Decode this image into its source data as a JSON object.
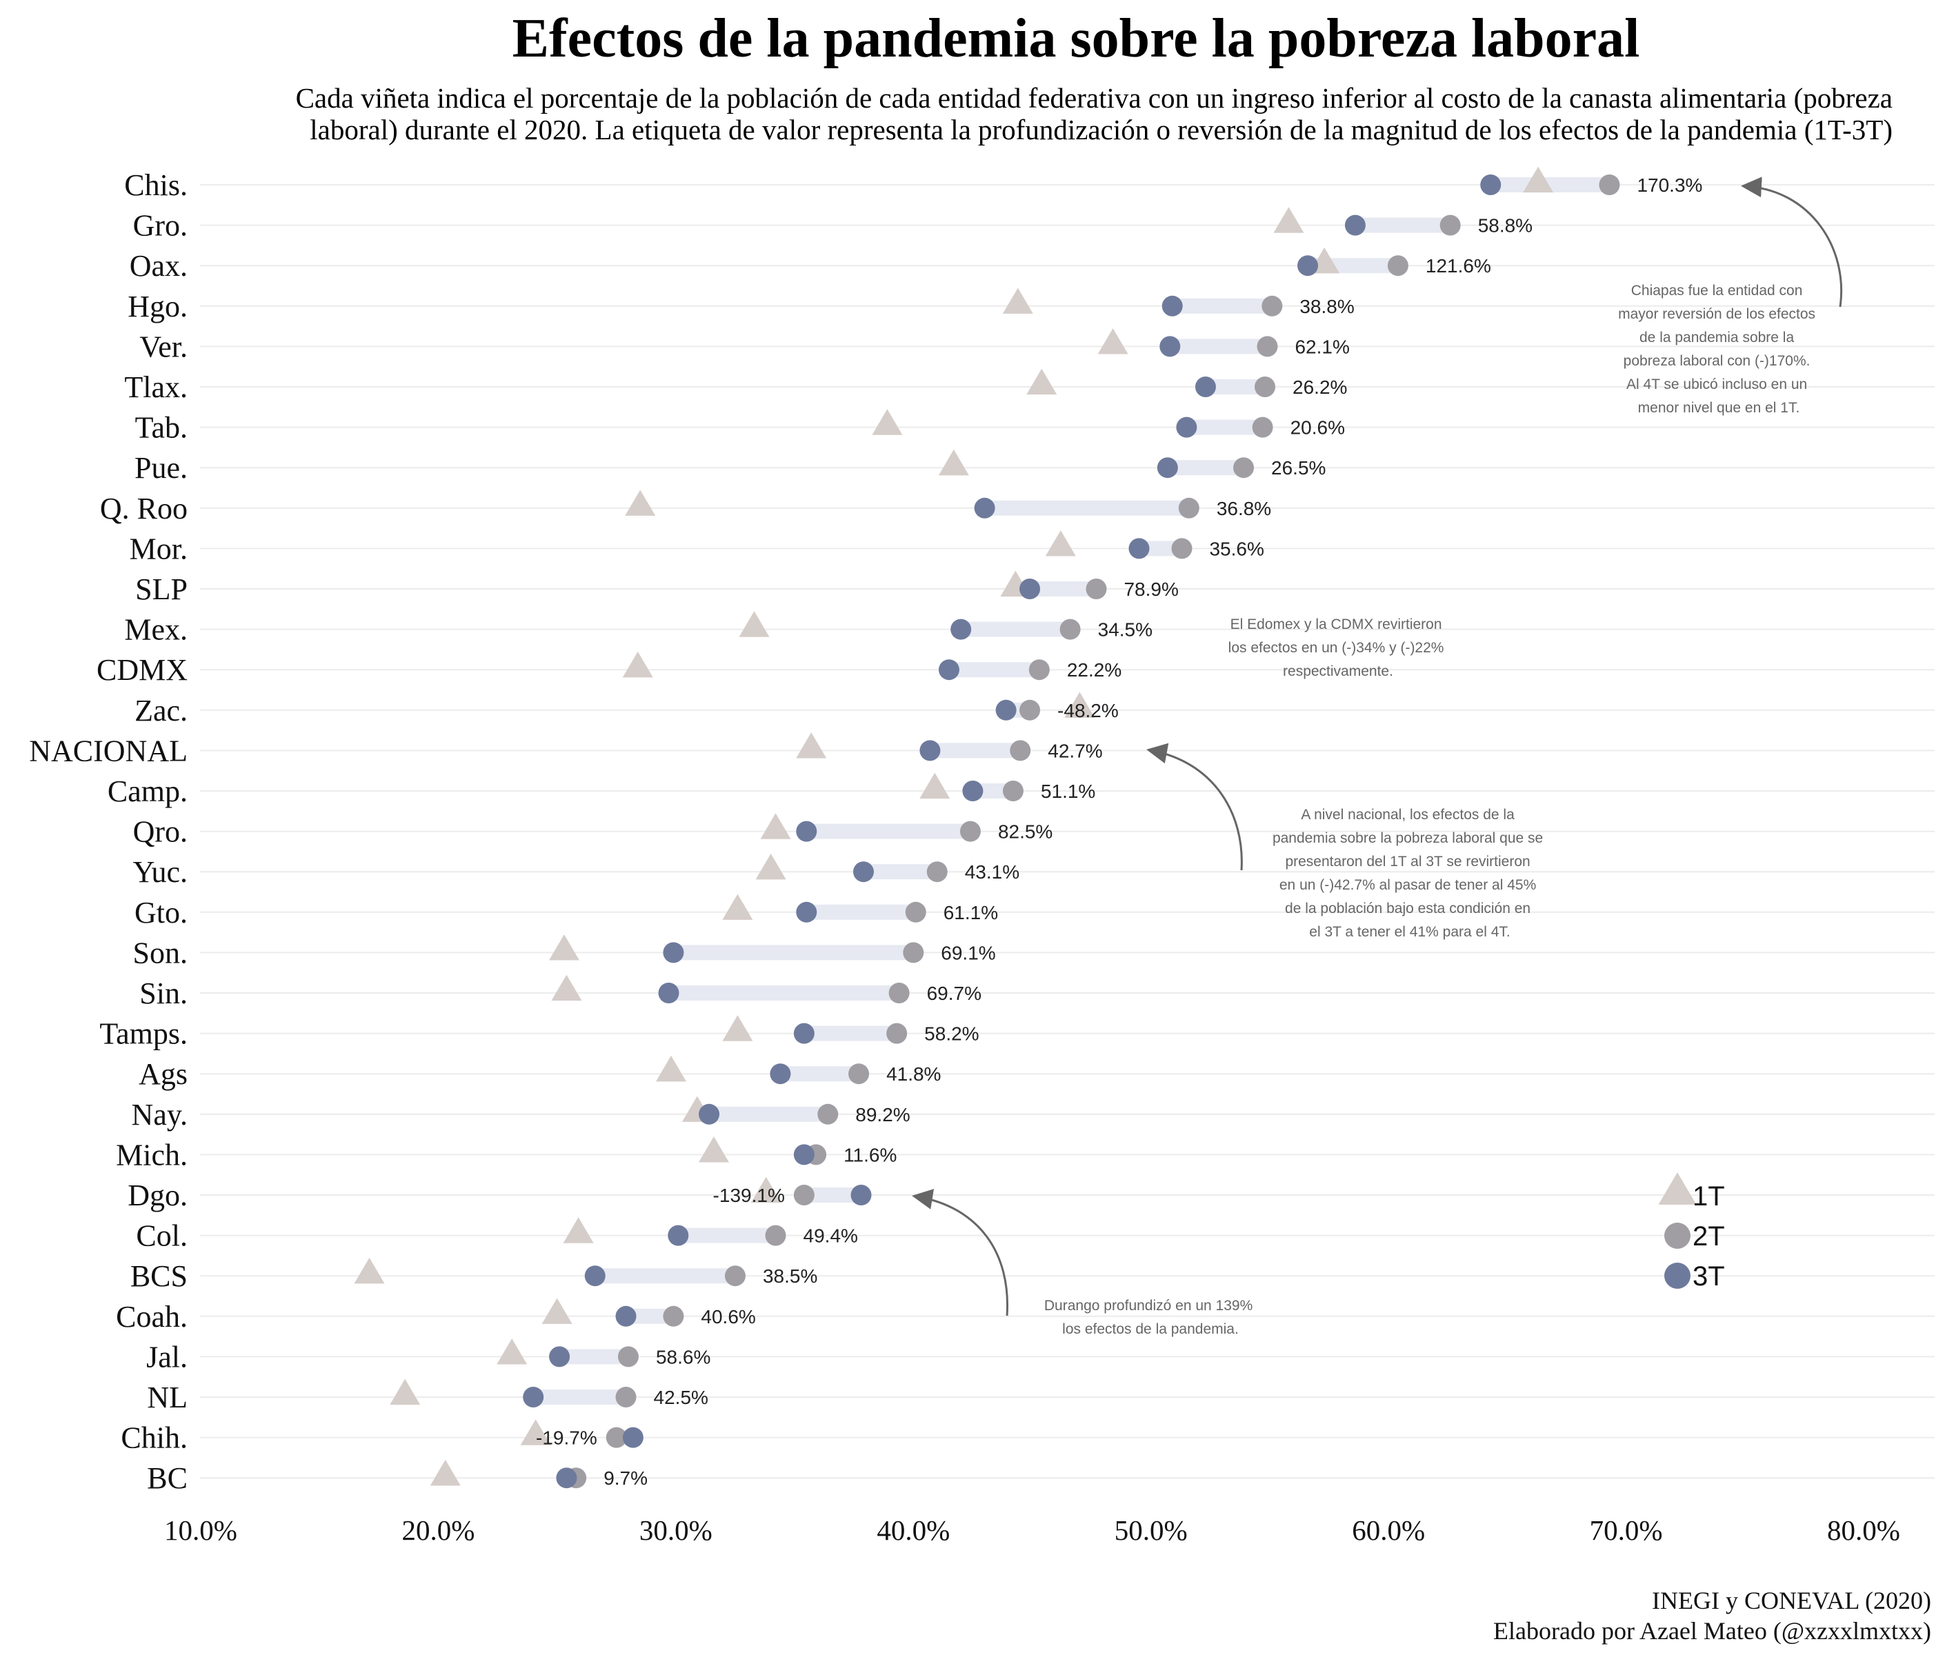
{
  "chart_data": {
    "type": "dumbbell",
    "title": "Efectos de la pandemia sobre la pobreza laboral",
    "subtitle_lines": [
      "Cada viñeta indica el porcentaje de la población de cada entidad federativa con un ingreso inferior al costo de la canasta alimentaria (pobreza",
      "laboral) durante el 2020. La etiqueta de valor representa la profundización o reversión de la magnitud de los efectos de la pandemia (1T-3T)"
    ],
    "x_ticks": [
      "10.0%",
      "20.0%",
      "30.0%",
      "40.0%",
      "50.0%",
      "60.0%",
      "70.0%",
      "80.0%"
    ],
    "xlim": [
      10,
      80
    ],
    "legend": [
      {
        "name": "1T",
        "shape": "triangle",
        "color": "#d5cdc9"
      },
      {
        "name": "2T",
        "shape": "circle",
        "color": "#a09ea3"
      },
      {
        "name": "3T",
        "shape": "circle",
        "color": "#6e7a9c"
      }
    ],
    "colors": {
      "t1": "#d5cdc9",
      "t2": "#a09ea3",
      "t3": "#6e7a9c",
      "segment": "#e6e9f1",
      "grid": "#ececec",
      "arrow": "#666666"
    },
    "rows": [
      {
        "state": "Chis.",
        "t1": 66.3,
        "t2": 69.3,
        "t3": 64.3,
        "label": "170.3%"
      },
      {
        "state": "Gro.",
        "t1": 55.8,
        "t2": 62.6,
        "t3": 58.6,
        "label": "58.8%"
      },
      {
        "state": "Oax.",
        "t1": 57.3,
        "t2": 60.4,
        "t3": 56.6,
        "label": "121.6%"
      },
      {
        "state": "Hgo.",
        "t1": 44.4,
        "t2": 55.1,
        "t3": 50.9,
        "label": "38.8%"
      },
      {
        "state": "Ver.",
        "t1": 48.4,
        "t2": 54.9,
        "t3": 50.8,
        "label": "62.1%"
      },
      {
        "state": "Tlax.",
        "t1": 45.4,
        "t2": 54.8,
        "t3": 52.3,
        "label": "26.2%"
      },
      {
        "state": "Tab.",
        "t1": 38.9,
        "t2": 54.7,
        "t3": 51.5,
        "label": "20.6%"
      },
      {
        "state": "Pue.",
        "t1": 41.7,
        "t2": 53.9,
        "t3": 50.7,
        "label": "26.5%"
      },
      {
        "state": "Q. Roo",
        "t1": 28.5,
        "t2": 51.6,
        "t3": 43.0,
        "label": "36.8%"
      },
      {
        "state": "Mor.",
        "t1": 46.2,
        "t2": 51.3,
        "t3": 49.5,
        "label": "35.6%"
      },
      {
        "state": "SLP",
        "t1": 44.3,
        "t2": 47.7,
        "t3": 44.9,
        "label": "78.9%"
      },
      {
        "state": "Mex.",
        "t1": 33.3,
        "t2": 46.6,
        "t3": 42.0,
        "label": "34.5%"
      },
      {
        "state": "CDMX",
        "t1": 28.4,
        "t2": 45.3,
        "t3": 41.5,
        "label": "22.2%"
      },
      {
        "state": "Zac.",
        "t1": 47.0,
        "t2": 44.9,
        "t3": 43.9,
        "label": "-48.2%"
      },
      {
        "state": "NACIONAL",
        "t1": 35.7,
        "t2": 44.5,
        "t3": 40.7,
        "label": "42.7%"
      },
      {
        "state": "Camp.",
        "t1": 40.9,
        "t2": 44.2,
        "t3": 42.5,
        "label": "51.1%"
      },
      {
        "state": "Qro.",
        "t1": 34.2,
        "t2": 42.4,
        "t3": 35.5,
        "label": "82.5%"
      },
      {
        "state": "Yuc.",
        "t1": 34.0,
        "t2": 41.0,
        "t3": 37.9,
        "label": "43.1%"
      },
      {
        "state": "Gto.",
        "t1": 32.6,
        "t2": 40.1,
        "t3": 35.5,
        "label": "61.1%"
      },
      {
        "state": "Son.",
        "t1": 25.3,
        "t2": 40.0,
        "t3": 29.9,
        "label": "69.1%"
      },
      {
        "state": "Sin.",
        "t1": 25.4,
        "t2": 39.4,
        "t3": 29.7,
        "label": "69.7%"
      },
      {
        "state": "Tamps.",
        "t1": 32.6,
        "t2": 39.3,
        "t3": 35.4,
        "label": "58.2%"
      },
      {
        "state": "Ags",
        "t1": 29.8,
        "t2": 37.7,
        "t3": 34.4,
        "label": "41.8%"
      },
      {
        "state": "Nay.",
        "t1": 30.9,
        "t2": 36.4,
        "t3": 31.4,
        "label": "89.2%"
      },
      {
        "state": "Mich.",
        "t1": 31.6,
        "t2": 35.9,
        "t3": 35.4,
        "label": "11.6%"
      },
      {
        "state": "Dgo.",
        "t1": 33.8,
        "t2": 35.4,
        "t3": 37.8,
        "label": "-139.1%"
      },
      {
        "state": "Col.",
        "t1": 25.9,
        "t2": 34.2,
        "t3": 30.1,
        "label": "49.4%"
      },
      {
        "state": "BCS",
        "t1": 17.1,
        "t2": 32.5,
        "t3": 26.6,
        "label": "38.5%"
      },
      {
        "state": "Coah.",
        "t1": 25.0,
        "t2": 29.9,
        "t3": 27.9,
        "label": "40.6%"
      },
      {
        "state": "Jal.",
        "t1": 23.1,
        "t2": 28.0,
        "t3": 25.1,
        "label": "58.6%"
      },
      {
        "state": "NL",
        "t1": 18.6,
        "t2": 27.9,
        "t3": 24.0,
        "label": "42.5%"
      },
      {
        "state": "Chih.",
        "t1": 24.1,
        "t2": 27.5,
        "t3": 28.2,
        "label": "-19.7%"
      },
      {
        "state": "BC",
        "t1": 20.3,
        "t2": 25.8,
        "t3": 25.4,
        "label": "9.7%"
      }
    ],
    "annotations": [
      {
        "id": "chiapas",
        "lines": [
          "Chiapas fue la entidad con",
          "mayor reversión de los efectos",
          "de la pandemia sobre la",
          "pobreza laboral con (-)170%.",
          "Al 4T se ubicó incluso en un",
          "menor nivel que en el 1T."
        ]
      },
      {
        "id": "edomex",
        "lines": [
          "El Edomex y la CDMX revirtieron",
          "los efectos en un (-)34% y (-)22%",
          "respectivamente."
        ]
      },
      {
        "id": "nacional",
        "lines": [
          "A nivel nacional, los efectos de la",
          "pandemia sobre la pobreza laboral que se",
          "presentaron del 1T al 3T se revirtieron",
          "en un (-)42.7% al pasar de tener al 45%",
          "de la población bajo esta condición en",
          "el 3T a tener el 41% para el 4T."
        ]
      },
      {
        "id": "durango",
        "lines": [
          "Durango profundizó en un 139%",
          "los efectos de la pandemia."
        ]
      }
    ],
    "caption_lines": [
      "INEGI y CONEVAL (2020)",
      "Elaborado por Azael Mateo (@xzxxlmxtxx)"
    ]
  }
}
